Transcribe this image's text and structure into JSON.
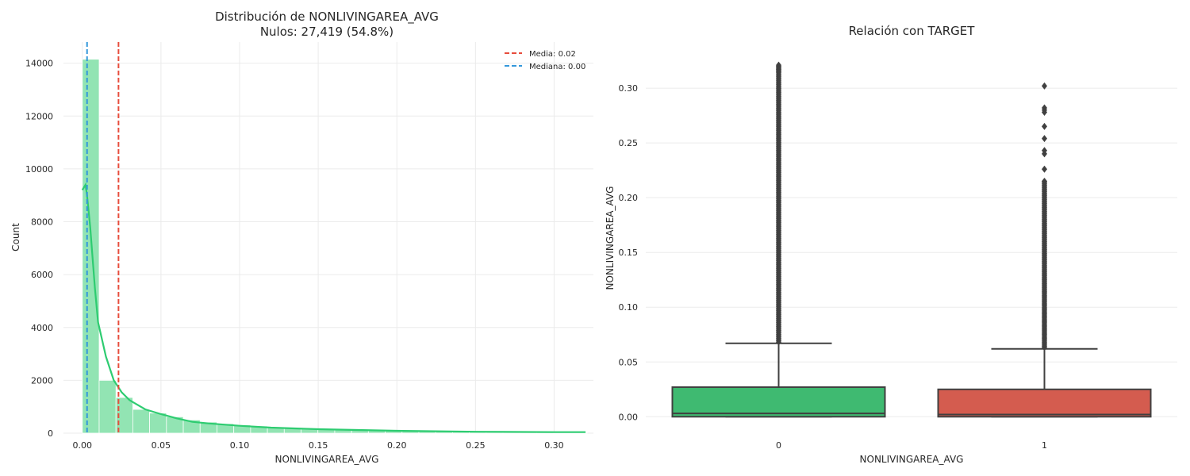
{
  "chart_data": [
    {
      "type": "bar",
      "subtype": "histogram-with-kde",
      "title": "Distribución de NONLIVINGAREA_AVG",
      "subtitle": "Nulos: 27,419 (54.8%)",
      "xlabel": "NONLIVINGAREA_AVG",
      "ylabel": "Count",
      "xlim": [
        -0.012,
        0.325
      ],
      "ylim": [
        0,
        14800
      ],
      "xticks": [
        "0.00",
        "0.05",
        "0.10",
        "0.15",
        "0.20",
        "0.25",
        "0.30"
      ],
      "yticks": [
        "0",
        "2000",
        "4000",
        "6000",
        "8000",
        "10000",
        "12000",
        "14000"
      ],
      "grid": true,
      "bin_width": 0.0107,
      "bins": [
        {
          "x0": 0.0,
          "count": 14150
        },
        {
          "x0": 0.0107,
          "count": 2000
        },
        {
          "x0": 0.0214,
          "count": 1350
        },
        {
          "x0": 0.0321,
          "count": 900
        },
        {
          "x0": 0.0428,
          "count": 760
        },
        {
          "x0": 0.0535,
          "count": 620
        },
        {
          "x0": 0.0642,
          "count": 500
        },
        {
          "x0": 0.0749,
          "count": 420
        },
        {
          "x0": 0.0856,
          "count": 360
        },
        {
          "x0": 0.0963,
          "count": 310
        },
        {
          "x0": 0.107,
          "count": 270
        },
        {
          "x0": 0.1177,
          "count": 230
        },
        {
          "x0": 0.1284,
          "count": 190
        },
        {
          "x0": 0.1391,
          "count": 165
        },
        {
          "x0": 0.1498,
          "count": 145
        },
        {
          "x0": 0.1605,
          "count": 125
        },
        {
          "x0": 0.1712,
          "count": 110
        },
        {
          "x0": 0.1819,
          "count": 95
        },
        {
          "x0": 0.1926,
          "count": 85
        },
        {
          "x0": 0.2033,
          "count": 75
        },
        {
          "x0": 0.214,
          "count": 65
        },
        {
          "x0": 0.2247,
          "count": 58
        },
        {
          "x0": 0.2354,
          "count": 52
        },
        {
          "x0": 0.2461,
          "count": 46
        },
        {
          "x0": 0.2568,
          "count": 40
        },
        {
          "x0": 0.2675,
          "count": 36
        },
        {
          "x0": 0.2782,
          "count": 32
        },
        {
          "x0": 0.2889,
          "count": 28
        },
        {
          "x0": 0.2996,
          "count": 24
        },
        {
          "x0": 0.3103,
          "count": 20
        }
      ],
      "kde": {
        "x": [
          0.0,
          0.002,
          0.003,
          0.005,
          0.008,
          0.01,
          0.015,
          0.02,
          0.025,
          0.03,
          0.04,
          0.05,
          0.06,
          0.07,
          0.08,
          0.1,
          0.12,
          0.15,
          0.2,
          0.25,
          0.3,
          0.32
        ],
        "y": [
          9200,
          9400,
          9000,
          7800,
          5500,
          4200,
          2900,
          2000,
          1550,
          1250,
          900,
          720,
          560,
          430,
          370,
          280,
          210,
          150,
          90,
          55,
          40,
          38
        ]
      },
      "reference_lines": [
        {
          "label": "Media: 0.02",
          "x": 0.023,
          "color": "#e74c3c"
        },
        {
          "label": "Mediana: 0.00",
          "x": 0.003,
          "color": "#3498db"
        }
      ],
      "legend_position": "top-right",
      "colors": {
        "bars": "#92e4b3",
        "kde": "#2ecc71"
      }
    },
    {
      "type": "boxplot",
      "title": "Relación con TARGET",
      "xlabel": "NONLIVINGAREA_AVG",
      "ylabel": "NONLIVINGAREA_AVG",
      "categories": [
        "0",
        "1"
      ],
      "ylim": [
        -0.015,
        0.337
      ],
      "yticks": [
        "0.00",
        "0.05",
        "0.10",
        "0.15",
        "0.20",
        "0.25",
        "0.30"
      ],
      "grid": true,
      "boxes": [
        {
          "category": "0",
          "min": 0.0,
          "q1": 0.0,
          "median": 0.003,
          "q3": 0.027,
          "whisker_high": 0.067,
          "outliers_dense_range": [
            0.068,
            0.32
          ],
          "outliers": [
            0.321,
            0.319,
            0.317,
            0.315
          ],
          "color": "#3fba71"
        },
        {
          "category": "1",
          "min": 0.0,
          "q1": 0.0,
          "median": 0.002,
          "q3": 0.025,
          "whisker_high": 0.062,
          "outliers_dense_range": [
            0.063,
            0.215
          ],
          "outliers": [
            0.302,
            0.282,
            0.28,
            0.278,
            0.265,
            0.254,
            0.243,
            0.24,
            0.226,
            0.215
          ],
          "color": "#d45c4f"
        }
      ]
    }
  ]
}
